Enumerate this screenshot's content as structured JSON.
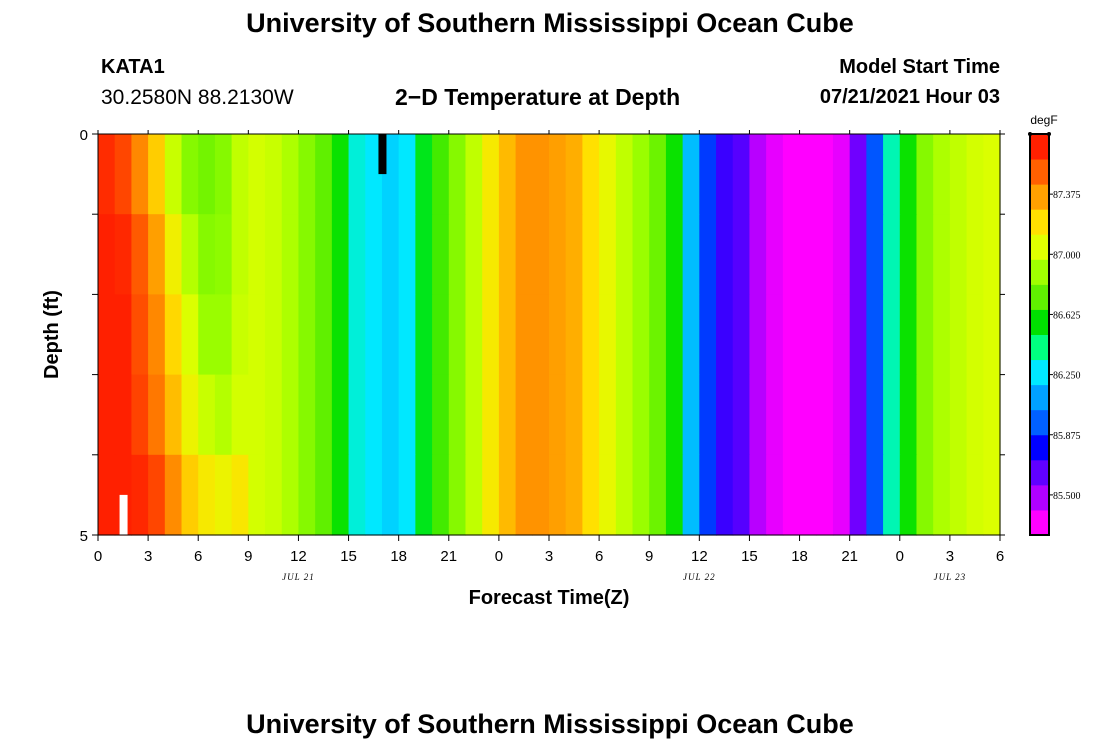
{
  "header": {
    "title": "University of Southern Mississippi Ocean Cube",
    "station": "KATA1",
    "coords": "30.2580N  88.2130W",
    "subtitle": "2−D Temperature at Depth",
    "model_label": "Model Start Time",
    "model_time": "07/21/2021 Hour 03"
  },
  "footer": {
    "title": "University of Southern Mississippi Ocean Cube"
  },
  "chart_data": {
    "type": "heatmap",
    "title": "2−D Temperature at Depth",
    "xlabel": "Forecast Time(Z)",
    "ylabel": "Depth (ft)",
    "x_units": "forecast hours from 07/21/2021 00Z",
    "xlim": [
      0,
      54
    ],
    "ylim": [
      0,
      5
    ],
    "y_inverted": true,
    "x_tick_labels": [
      "0",
      "3",
      "6",
      "9",
      "12",
      "15",
      "18",
      "21",
      "0",
      "3",
      "6",
      "9",
      "12",
      "15",
      "18",
      "21",
      "0",
      "3",
      "6"
    ],
    "y_tick_labels": [
      "0",
      "5"
    ],
    "date_labels": [
      {
        "text": "JUL 21",
        "hour": 12
      },
      {
        "text": "JUL 22",
        "hour": 36
      },
      {
        "text": "JUL 23",
        "hour": 51
      }
    ],
    "depth_layers": [
      0,
      1,
      2,
      3,
      4,
      5
    ],
    "time_steps_hours": [
      0,
      1,
      2,
      3,
      4,
      5,
      6,
      7,
      8,
      9,
      10,
      11,
      12,
      13,
      14,
      15,
      16,
      17,
      18,
      19,
      20,
      21,
      22,
      23,
      24,
      25,
      26,
      27,
      28,
      29,
      30,
      31,
      32,
      33,
      34,
      35,
      36,
      37,
      38,
      39,
      40,
      41,
      42,
      43,
      44,
      45,
      46,
      47,
      48,
      49,
      50,
      51,
      52,
      53
    ],
    "surface_temperature_degF": [
      87.72,
      87.65,
      87.48,
      87.3,
      87.02,
      86.85,
      86.8,
      86.85,
      87.0,
      87.05,
      87.02,
      86.95,
      86.85,
      86.75,
      86.6,
      86.3,
      86.25,
      86.2,
      86.25,
      86.55,
      86.7,
      86.85,
      87.0,
      87.2,
      87.35,
      87.45,
      87.45,
      87.42,
      87.38,
      87.25,
      87.12,
      87.0,
      86.9,
      86.78,
      86.6,
      86.15,
      85.85,
      85.65,
      85.6,
      85.4,
      85.3,
      85.25,
      85.25,
      85.25,
      85.3,
      85.55,
      85.9,
      86.35,
      86.6,
      86.85,
      86.95,
      87.0,
      87.05,
      87.07
    ],
    "layer_offsets_degF": [
      {
        "layer_top_ft": 0,
        "first_hours_offset": [
          0,
          0,
          0,
          0,
          0,
          0,
          0,
          0,
          0
        ]
      },
      {
        "layer_top_ft": 1,
        "first_hours_offset": [
          0.05,
          0.08,
          0.12,
          0.12,
          0.15,
          0.12,
          0.05,
          0.02,
          0
        ]
      },
      {
        "layer_top_ft": 2,
        "first_hours_offset": [
          0.08,
          0.12,
          0.15,
          0.18,
          0.25,
          0.22,
          0.1,
          0.05,
          0.02
        ]
      },
      {
        "layer_top_ft": 3,
        "first_hours_offset": [
          0.1,
          0.15,
          0.18,
          0.22,
          0.32,
          0.3,
          0.22,
          0.12,
          0.05
        ]
      },
      {
        "layer_top_ft": 4,
        "first_hours_offset": [
          0.15,
          0.2,
          0.25,
          0.35,
          0.45,
          0.45,
          0.4,
          0.3,
          0.22
        ]
      }
    ],
    "missing_cells": [
      {
        "hour": 17,
        "depth_range_ft": [
          0,
          0.5
        ],
        "color": "#000000"
      },
      {
        "hour": 1.5,
        "depth_range_ft": [
          4.5,
          5
        ],
        "color": "#ffffff"
      }
    ],
    "colorbar": {
      "units": "degF",
      "range": [
        85.25,
        87.75
      ],
      "tick_values": [
        "87.375",
        "87.000",
        "86.625",
        "86.250",
        "85.875",
        "85.500"
      ],
      "colors": [
        "#ff00ff",
        "#b000ff",
        "#6000ff",
        "#0000ff",
        "#0060ff",
        "#00a0ff",
        "#00e8ff",
        "#00ff80",
        "#00e000",
        "#60f000",
        "#a0ff00",
        "#e0ff00",
        "#ffe000",
        "#ffa000",
        "#ff6000",
        "#ff2000"
      ]
    }
  }
}
